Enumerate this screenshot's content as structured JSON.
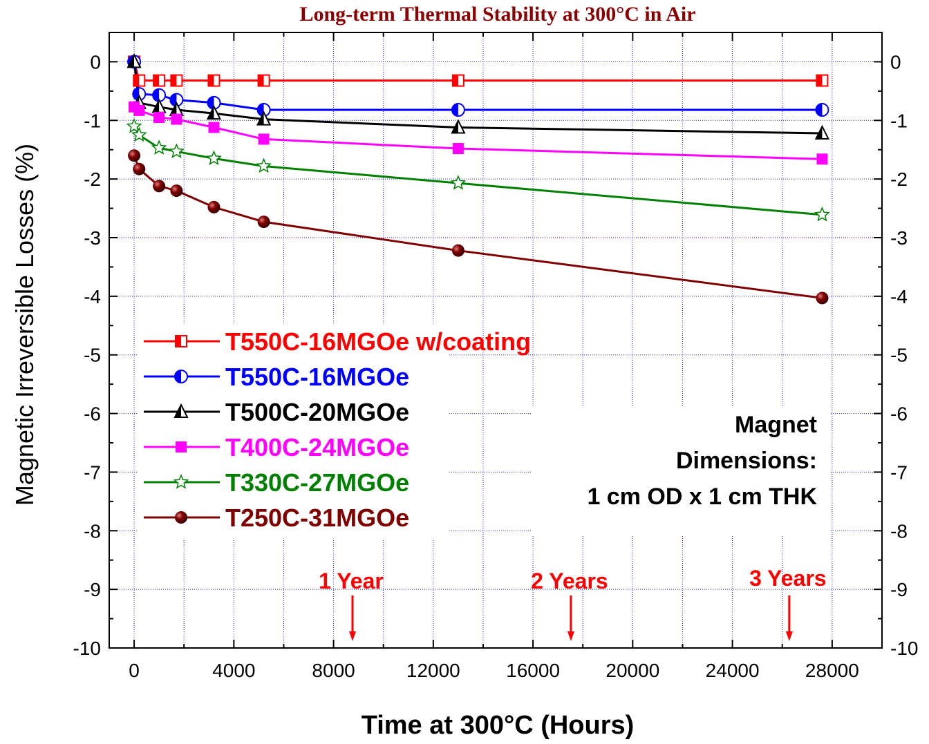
{
  "chart_data": {
    "type": "line",
    "title": "Long-term Thermal Stability at 300°C in Air",
    "xlabel": "Time at 300°C (Hours)",
    "ylabel": "Magnetic Irreversible Losses (%)",
    "xlim": [
      -1000,
      30000
    ],
    "ylim": [
      -10,
      0.5
    ],
    "xticks": [
      0,
      4000,
      8000,
      12000,
      16000,
      20000,
      24000,
      28000
    ],
    "yticks": [
      0,
      -1,
      -2,
      -3,
      -4,
      -5,
      -6,
      -7,
      -8,
      -9,
      -10
    ],
    "grid": true,
    "legend_position": "left",
    "series": [
      {
        "name": "T550C-16MGOe w/coating",
        "color": "#ff0000",
        "marker": "square-half",
        "x": [
          0,
          200,
          1000,
          1700,
          3200,
          5200,
          13000,
          27600
        ],
        "y": [
          0,
          -0.32,
          -0.32,
          -0.32,
          -0.32,
          -0.32,
          -0.32,
          -0.32
        ]
      },
      {
        "name": "T550C-16MGOe",
        "color": "#0000ff",
        "marker": "circle-half",
        "x": [
          0,
          200,
          1000,
          1700,
          3200,
          5200,
          13000,
          27600
        ],
        "y": [
          0,
          -0.55,
          -0.57,
          -0.65,
          -0.7,
          -0.82,
          -0.82,
          -0.82
        ]
      },
      {
        "name": "T500C-20MGOe",
        "color": "#000000",
        "marker": "triangle-half",
        "x": [
          0,
          200,
          1000,
          1700,
          3200,
          5200,
          13000,
          27600
        ],
        "y": [
          0,
          -0.7,
          -0.77,
          -0.82,
          -0.88,
          -0.98,
          -1.12,
          -1.22
        ]
      },
      {
        "name": "T400C-24MGOe",
        "color": "#ff00ff",
        "marker": "square",
        "x": [
          0,
          200,
          1000,
          1700,
          3200,
          5200,
          13000,
          27600
        ],
        "y": [
          -0.77,
          -0.83,
          -0.95,
          -0.98,
          -1.12,
          -1.32,
          -1.48,
          -1.66
        ]
      },
      {
        "name": "T330C-27MGOe",
        "color": "#008000",
        "marker": "star",
        "x": [
          0,
          200,
          1000,
          1700,
          3200,
          5200,
          13000,
          27600
        ],
        "y": [
          -1.1,
          -1.25,
          -1.47,
          -1.53,
          -1.65,
          -1.78,
          -2.07,
          -2.61
        ]
      },
      {
        "name": "T250C-31MGOe",
        "color": "#800000",
        "marker": "sphere",
        "x": [
          0,
          200,
          1000,
          1700,
          3200,
          5200,
          13000,
          27600
        ],
        "y": [
          -1.6,
          -1.83,
          -2.12,
          -2.2,
          -2.48,
          -2.73,
          -3.22,
          -4.03
        ]
      }
    ],
    "annotations": [
      {
        "text": "1 Year",
        "x": 8760
      },
      {
        "text": "2 Years",
        "x": 17520
      },
      {
        "text": "3 Years",
        "x": 26280
      }
    ],
    "note_lines": [
      "Magnet",
      "Dimensions:",
      "1 cm OD x 1 cm THK"
    ]
  }
}
